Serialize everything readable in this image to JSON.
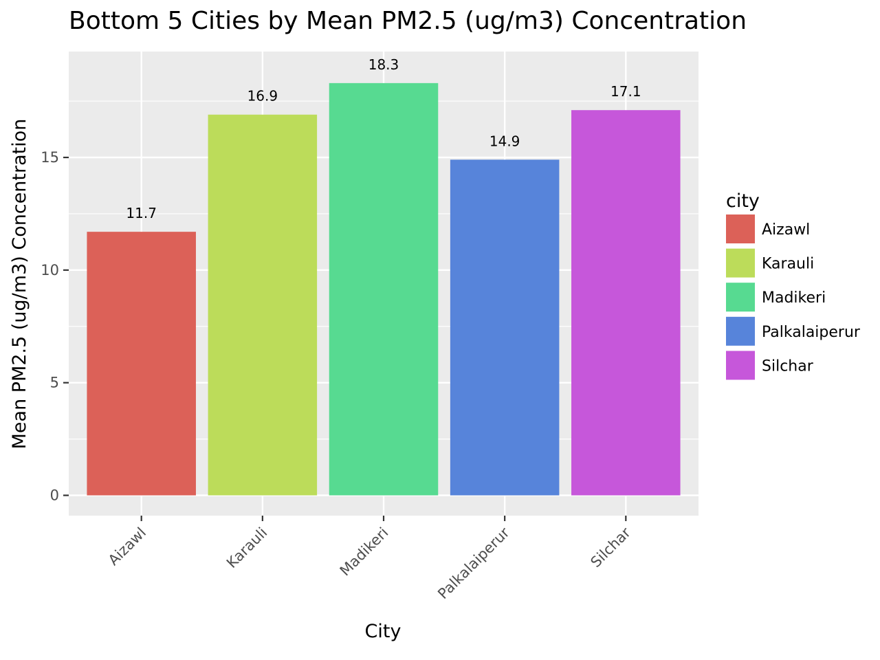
{
  "chart_data": {
    "type": "bar",
    "title": "Bottom 5 Cities by Mean PM2.5 (ug/m3) Concentration",
    "xlabel": "City",
    "ylabel": "Mean PM2.5 (ug/m3) Concentration",
    "categories": [
      "Aizawl",
      "Karauli",
      "Madikeri",
      "Palkalaiperur",
      "Silchar"
    ],
    "values": [
      11.7,
      16.9,
      18.3,
      14.9,
      17.1
    ],
    "data_labels": [
      "11.7",
      "16.9",
      "18.3",
      "14.9",
      "17.1"
    ],
    "colors": [
      "#dc6158",
      "#bcdc5a",
      "#57da91",
      "#5784da",
      "#c657da"
    ],
    "yticks": [
      0,
      5,
      10,
      15
    ],
    "ylim": [
      -0.9,
      19.7
    ],
    "grid": true,
    "panel_background": "#ebebeb",
    "x_tick_rotation_deg": 45,
    "legend": {
      "title": "city",
      "position": "right",
      "entries": [
        "Aizawl",
        "Karauli",
        "Madikeri",
        "Palkalaiperur",
        "Silchar"
      ]
    }
  }
}
